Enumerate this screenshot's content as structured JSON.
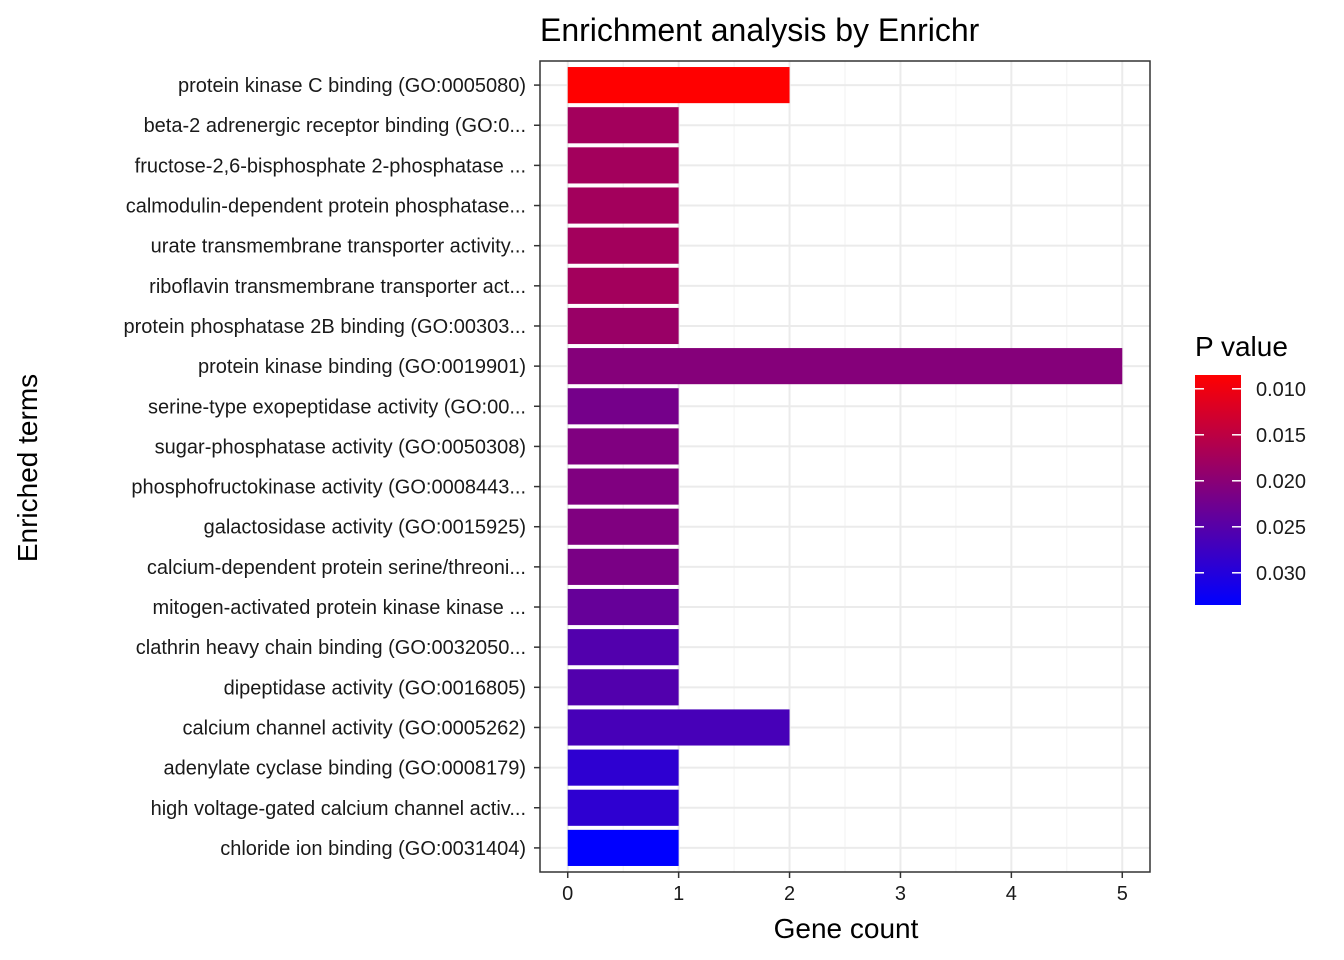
{
  "chart_data": {
    "type": "bar",
    "orientation": "horizontal",
    "title": "Enrichment analysis by Enrichr",
    "xlabel": "Gene count",
    "ylabel": "Enriched terms",
    "xlim": [
      -0.25,
      5.25
    ],
    "xticks": [
      0,
      1,
      2,
      3,
      4,
      5
    ],
    "grid": true,
    "categories": [
      "protein kinase C binding (GO:0005080)",
      "beta-2 adrenergic receptor binding (GO:0...",
      "fructose-2,6-bisphosphate 2-phosphatase ...",
      "calmodulin-dependent protein phosphatase...",
      "urate transmembrane transporter activity...",
      "riboflavin transmembrane transporter act...",
      "protein phosphatase 2B binding (GO:00303...",
      "protein kinase binding (GO:0019901)",
      "serine-type exopeptidase activity (GO:00...",
      "sugar-phosphatase activity (GO:0050308)",
      "phosphofructokinase activity (GO:0008443...",
      "galactosidase activity (GO:0015925)",
      "calcium-dependent protein serine/threoni...",
      "mitogen-activated protein kinase kinase ...",
      "clathrin heavy chain binding (GO:0032050...",
      "dipeptidase activity (GO:0016805)",
      "calcium channel activity (GO:0005262)",
      "adenylate cyclase binding (GO:0008179)",
      "high voltage-gated calcium channel activ...",
      "chloride ion binding (GO:0031404)"
    ],
    "values": [
      2,
      1,
      1,
      1,
      1,
      1,
      1,
      5,
      1,
      1,
      1,
      1,
      1,
      1,
      1,
      1,
      2,
      1,
      1,
      1
    ],
    "p_values": [
      0.0085,
      0.0175,
      0.0175,
      0.0175,
      0.0175,
      0.0175,
      0.0185,
      0.0205,
      0.022,
      0.021,
      0.021,
      0.021,
      0.0215,
      0.0235,
      0.0255,
      0.0255,
      0.0265,
      0.029,
      0.029,
      0.0335
    ],
    "legend": {
      "title": "P value",
      "placement": "right",
      "ticks": [
        0.01,
        0.015,
        0.02,
        0.025,
        0.03
      ],
      "tick_labels": [
        "0.010",
        "0.015",
        "0.020",
        "0.025",
        "0.030"
      ],
      "range": [
        0.0085,
        0.0335
      ],
      "low_color": "#ff0000",
      "high_color": "#0000ff"
    }
  }
}
